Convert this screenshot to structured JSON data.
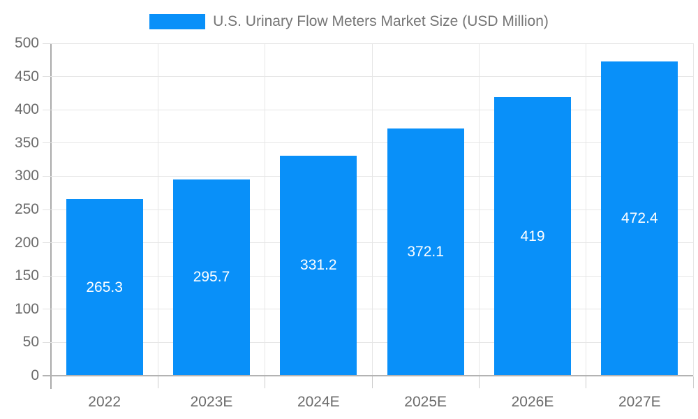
{
  "legend": {
    "label": "U.S. Urinary Flow Meters Market Size (USD Million)"
  },
  "chart_data": {
    "type": "bar",
    "title": "U.S. Urinary Flow Meters Market Size (USD Million)",
    "categories": [
      "2022",
      "2023E",
      "2024E",
      "2025E",
      "2026E",
      "2027E"
    ],
    "values": [
      265.3,
      295.7,
      331.2,
      372.1,
      419,
      472.4
    ],
    "value_labels": [
      "265.3",
      "295.7",
      "331.2",
      "372.1",
      "419",
      "472.4"
    ],
    "xlabel": "",
    "ylabel": "",
    "ylim": [
      0,
      500
    ],
    "ytick_step": 50,
    "ytick_labels": [
      "0",
      "50",
      "100",
      "150",
      "200",
      "250",
      "300",
      "350",
      "400",
      "450",
      "500"
    ],
    "grid": true,
    "legend_position": "top",
    "value_label_position": "inside-center"
  },
  "colors": {
    "bar": "#0990f9",
    "bar_value_text": "#ffffff",
    "axis_text": "#6b6b6b",
    "legend_text": "#757575",
    "gridline": "#e6e6e6",
    "zero_line": "#b3b3b3",
    "axis_line": "#aaaaaa",
    "tick": "#cccccc",
    "background": "#ffffff"
  }
}
